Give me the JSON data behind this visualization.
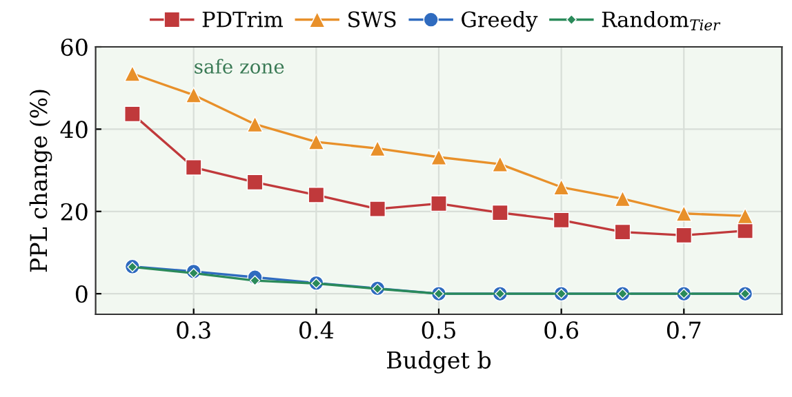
{
  "chart_data": {
    "type": "line",
    "xlabel": "Budget b",
    "ylabel": "PPL change (%)",
    "x": [
      0.25,
      0.3,
      0.35,
      0.4,
      0.45,
      0.5,
      0.55,
      0.6,
      0.65,
      0.7,
      0.75
    ],
    "series": [
      {
        "name": "PDTrim",
        "color": "#c0393b",
        "marker": "square",
        "values": [
          43.7,
          30.7,
          27.1,
          24.0,
          20.6,
          21.9,
          19.7,
          17.9,
          15.0,
          14.2,
          15.3
        ]
      },
      {
        "name": "SWS",
        "color": "#e8902a",
        "marker": "triangle",
        "values": [
          53.5,
          48.3,
          41.2,
          36.9,
          35.3,
          33.2,
          31.5,
          25.9,
          23.1,
          19.5,
          18.9
        ]
      },
      {
        "name": "Greedy",
        "color": "#2f6bbf",
        "marker": "circle",
        "values": [
          6.6,
          5.4,
          4.0,
          2.6,
          1.3,
          0,
          0,
          0,
          0,
          0,
          0
        ]
      },
      {
        "name": "Random$_{Tier}$",
        "color": "#2a8a5a",
        "marker": "diamond",
        "values": [
          6.5,
          5.0,
          3.2,
          2.5,
          1.2,
          0,
          0,
          0,
          0,
          0,
          0
        ]
      }
    ],
    "bands": [
      {
        "axis": "y",
        "from": -5,
        "to": 60,
        "label": "safe zone",
        "color": "#f2f8f1"
      }
    ],
    "xlim": [
      0.22,
      0.78
    ],
    "xticks": [
      {
        "value": 0.3,
        "label": "0.3"
      },
      {
        "value": 0.4,
        "label": "0.4"
      },
      {
        "value": 0.5,
        "label": "0.5"
      },
      {
        "value": 0.6,
        "label": "0.6"
      },
      {
        "value": 0.7,
        "label": "0.7"
      }
    ],
    "ylim": [
      -5,
      60
    ],
    "yticks": [
      0,
      20,
      40,
      60
    ],
    "grid": true,
    "legend": "top",
    "line_style": "solid"
  }
}
